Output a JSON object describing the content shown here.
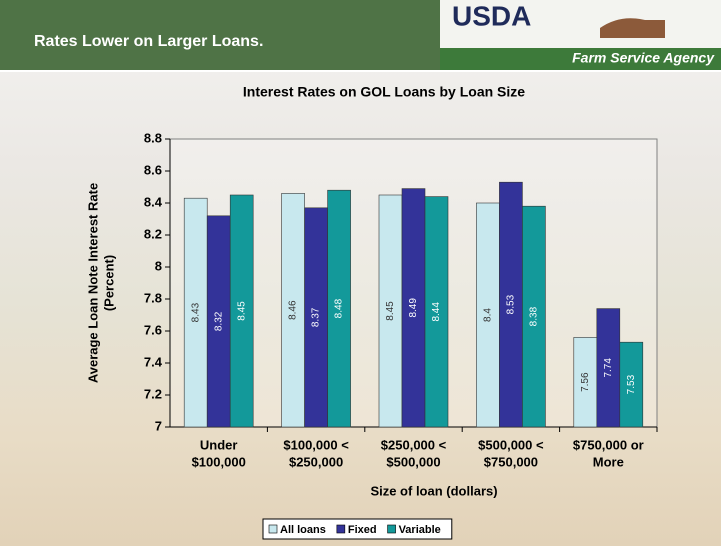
{
  "header": {
    "title": "Rates Lower on Larger Loans.",
    "logo": "USDA",
    "agency": "Farm Service Agency"
  },
  "chart_data": {
    "type": "bar",
    "title": "Interest Rates on GOL Loans by Loan Size",
    "categories": [
      [
        "Under",
        "$100,000"
      ],
      [
        "$100,000 <",
        "$250,000"
      ],
      [
        "$250,000 <",
        "$500,000"
      ],
      [
        "$500,000 <",
        "$750,000"
      ],
      [
        "$750,000 or",
        "More"
      ]
    ],
    "series": [
      {
        "name": "All loans",
        "color": "#c8e8ee",
        "values": [
          8.43,
          8.46,
          8.45,
          8.4,
          7.56
        ]
      },
      {
        "name": "Fixed",
        "color": "#333399",
        "values": [
          8.32,
          8.37,
          8.49,
          8.53,
          7.74
        ]
      },
      {
        "name": "Variable",
        "color": "#13999a",
        "values": [
          8.45,
          8.48,
          8.44,
          8.38,
          7.53
        ]
      }
    ],
    "ylim": [
      7,
      8.8
    ],
    "yticks": [
      7,
      7.2,
      7.4,
      7.6,
      7.8,
      8,
      8.2,
      8.4,
      8.6,
      8.8
    ],
    "xlabel": "Size of loan (dollars)",
    "ylabel": [
      "Average Loan Note Interest Rate",
      "(Percent)"
    ],
    "legend": "bottom"
  }
}
